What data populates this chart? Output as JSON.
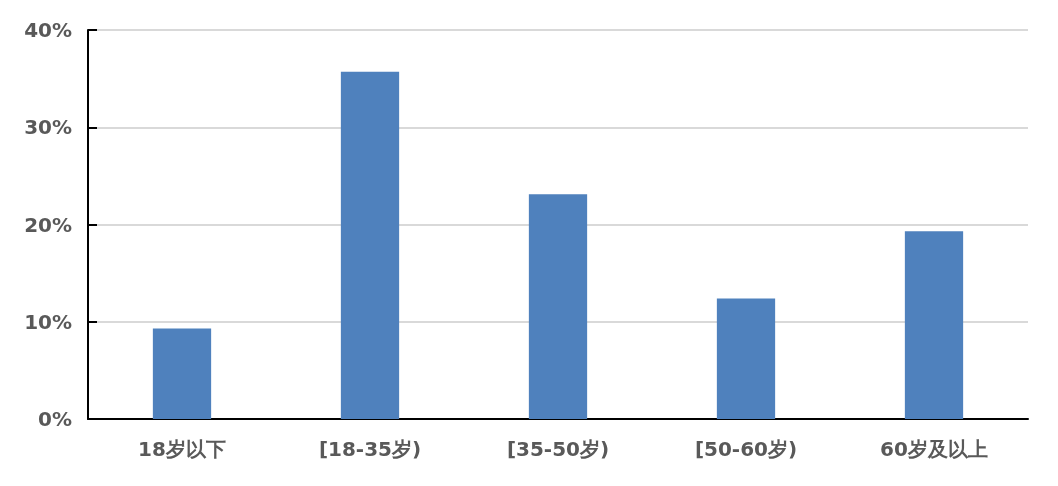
{
  "chart_data": {
    "type": "bar",
    "categories": [
      "18岁以下",
      "[18-35岁)",
      "[35-50岁)",
      "[50-60岁)",
      "60岁及以上"
    ],
    "values": [
      9.3,
      35.7,
      23.1,
      12.4,
      19.3
    ],
    "color": "#4f81bd",
    "ylim": [
      0,
      40
    ],
    "yticks": [
      {
        "value": 0,
        "label": "0%"
      },
      {
        "value": 10,
        "label": "10%"
      },
      {
        "value": 20,
        "label": "20%"
      },
      {
        "value": 30,
        "label": "30%"
      },
      {
        "value": 40,
        "label": "40%"
      }
    ],
    "grid": "y"
  }
}
